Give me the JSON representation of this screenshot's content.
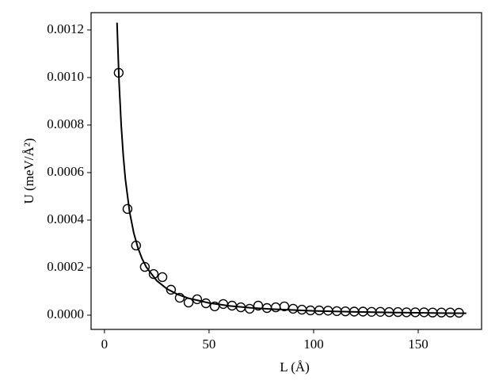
{
  "chart_data": {
    "type": "scatter",
    "xlabel": "L (Å)",
    "ylabel": "U (meV/Å²)",
    "xlim": [
      -6.4,
      180.3
    ],
    "xticks": [
      0,
      50,
      100,
      150
    ],
    "ylim": [
      -6e-05,
      0.001273
    ],
    "yticks": [
      {
        "value": 0,
        "label": "0.0000"
      },
      {
        "value": 0.0002,
        "label": "0.0002"
      },
      {
        "value": 0.0004,
        "label": "0.0004"
      },
      {
        "value": 0.0006,
        "label": "0.0006"
      },
      {
        "value": 0.0008,
        "label": "0.0008"
      },
      {
        "value": 0.001,
        "label": "0.0010"
      },
      {
        "value": 0.0012,
        "label": "0.0012"
      }
    ],
    "series": [
      {
        "style": "line",
        "color": "#000000",
        "x": [
          6,
          7,
          8,
          9,
          10,
          12,
          14,
          16,
          18,
          20,
          25,
          30,
          35,
          40,
          50,
          60,
          70,
          80,
          100,
          120,
          140,
          160,
          173
        ],
        "values": [
          0.001231,
          0.000977,
          0.0008,
          0.00067,
          0.000572,
          0.000435,
          0.000346,
          0.000283,
          0.000237,
          0.000202,
          0.000145,
          0.00011,
          8.74e-05,
          7.15e-05,
          5.12e-05,
          3.89e-05,
          3.09e-05,
          2.53e-05,
          1.81e-05,
          1.38e-05,
          1.09e-05,
          8.9e-06,
          8e-06
        ]
      },
      {
        "style": "marker",
        "color": "#000000",
        "x": [
          6.8,
          11,
          15.1,
          19.3,
          23.5,
          27.7,
          31.8,
          36,
          40.2,
          44.3,
          48.5,
          52.7,
          56.8,
          61,
          65.2,
          69.4,
          73.5,
          77.7,
          81.9,
          86,
          90.2,
          94.4,
          98.5,
          102.7,
          106.9,
          111.1,
          115.2,
          119.4,
          123.6,
          127.7,
          131.9,
          136.1,
          140.3,
          144.4,
          148.6,
          152.8,
          156.9,
          161.1,
          165.3,
          169.5
        ],
        "values": [
          0.00102,
          0.000447,
          0.000293,
          0.000203,
          0.000173,
          0.00016,
          0.000107,
          7.3e-05,
          5.3e-05,
          6.7e-05,
          5e-05,
          3.7e-05,
          4.7e-05,
          4e-05,
          3.3e-05,
          2.7e-05,
          4e-05,
          3e-05,
          3.3e-05,
          3.7e-05,
          2.7e-05,
          2.3e-05,
          2e-05,
          2e-05,
          1.9e-05,
          1.7e-05,
          1.6e-05,
          1.5e-05,
          1.5e-05,
          1.4e-05,
          1.4e-05,
          1.3e-05,
          1.3e-05,
          1.2e-05,
          1.2e-05,
          1.2e-05,
          1.1e-05,
          1.1e-05,
          1.1e-05,
          1e-05
        ]
      }
    ]
  }
}
